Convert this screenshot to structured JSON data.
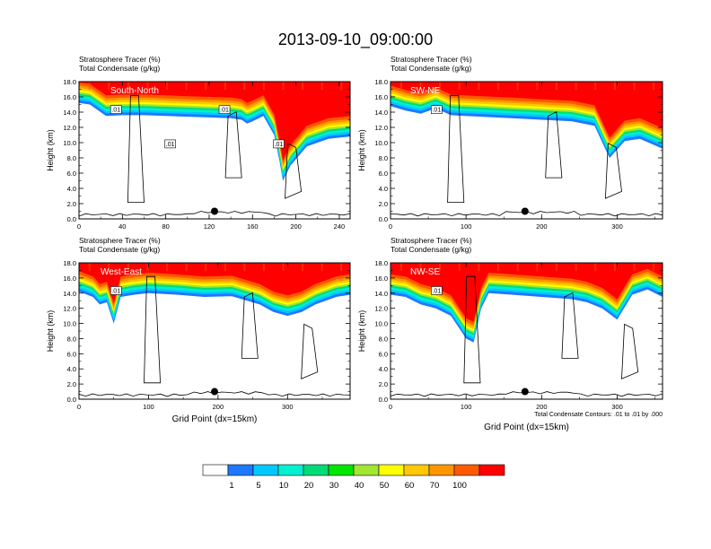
{
  "chart_data": [
    {
      "type": "contour",
      "panel": "South-North",
      "left_strings": [
        "Stratosphere Tracer   (%)",
        "Total Condensate   (g/kg)"
      ],
      "ylabel": "Height (km)",
      "xlabel": "",
      "xlim": [
        0,
        250
      ],
      "ylim": [
        0,
        18
      ],
      "xticks": [
        0,
        40,
        80,
        120,
        160,
        200,
        240
      ],
      "yticks": [
        0.0,
        2.0,
        4.0,
        6.0,
        8.0,
        10.0,
        12.0,
        14.0,
        16.0,
        18.0
      ],
      "tracer_boundary_km": [
        [
          0,
          15.2
        ],
        [
          10,
          15.0
        ],
        [
          25,
          13.5
        ],
        [
          40,
          13.6
        ],
        [
          60,
          13.6
        ],
        [
          80,
          13.5
        ],
        [
          100,
          13.4
        ],
        [
          120,
          13.3
        ],
        [
          140,
          13.2
        ],
        [
          150,
          13.0
        ],
        [
          155,
          12.5
        ],
        [
          160,
          12.8
        ],
        [
          170,
          13.5
        ],
        [
          180,
          11
        ],
        [
          185,
          7.5
        ],
        [
          188,
          5
        ],
        [
          195,
          7
        ],
        [
          210,
          9.5
        ],
        [
          230,
          10.5
        ],
        [
          250,
          10.8
        ]
      ],
      "contour_labels": [
        ".01",
        ".01",
        ".01",
        ".01"
      ],
      "marker_x": 125,
      "marker_y_km": 1.0
    },
    {
      "type": "contour",
      "panel": "SW-NE",
      "left_strings": [
        "Stratosphere Tracer   (%)",
        "Total Condensate   (g/kg)"
      ],
      "ylabel": "Height (km)",
      "xlabel": "",
      "xlim": [
        0,
        360
      ],
      "ylim": [
        0,
        18
      ],
      "xticks": [
        0,
        100,
        200,
        300
      ],
      "yticks": [
        0.0,
        2.0,
        4.0,
        6.0,
        8.0,
        10.0,
        12.0,
        14.0,
        16.0,
        18.0
      ],
      "tracer_boundary_km": [
        [
          0,
          14.8
        ],
        [
          20,
          14.2
        ],
        [
          40,
          13.8
        ],
        [
          60,
          14.5
        ],
        [
          80,
          13.6
        ],
        [
          120,
          13.4
        ],
        [
          160,
          13.2
        ],
        [
          200,
          13.0
        ],
        [
          240,
          12.8
        ],
        [
          270,
          12.2
        ],
        [
          285,
          9
        ],
        [
          290,
          8
        ],
        [
          310,
          10.2
        ],
        [
          330,
          10.5
        ],
        [
          360,
          9.2
        ]
      ],
      "contour_labels": [
        ".01"
      ],
      "marker_x": 178,
      "marker_y_km": 1.0
    },
    {
      "type": "contour",
      "panel": "West-East",
      "left_strings": [
        "Stratosphere Tracer   (%)",
        "Total Condensate   (g/kg)"
      ],
      "ylabel": "Height (km)",
      "xlabel": "Grid Point (dx=15km)",
      "xlim": [
        0,
        390
      ],
      "ylim": [
        0,
        18
      ],
      "xticks": [
        0,
        100,
        200,
        300
      ],
      "yticks": [
        0.0,
        2.0,
        4.0,
        6.0,
        8.0,
        10.0,
        12.0,
        14.0,
        16.0,
        18.0
      ],
      "tracer_boundary_km": [
        [
          0,
          14.2
        ],
        [
          20,
          13.5
        ],
        [
          30,
          12.5
        ],
        [
          40,
          12.8
        ],
        [
          50,
          10
        ],
        [
          60,
          13.5
        ],
        [
          80,
          13.8
        ],
        [
          100,
          14
        ],
        [
          140,
          13.8
        ],
        [
          180,
          13.5
        ],
        [
          220,
          13.6
        ],
        [
          260,
          12.5
        ],
        [
          280,
          11.5
        ],
        [
          300,
          11
        ],
        [
          320,
          11.5
        ],
        [
          340,
          12.5
        ],
        [
          370,
          13.5
        ],
        [
          390,
          13.8
        ]
      ],
      "contour_labels": [
        ".01"
      ],
      "marker_x": 195,
      "marker_y_km": 1.0
    },
    {
      "type": "contour",
      "panel": "NW-SE",
      "left_strings": [
        "Stratosphere Tracer   (%)",
        "Total Condensate   (g/kg)"
      ],
      "ylabel": "Height (km)",
      "xlabel": "Grid Point (dx=15km)",
      "xlim": [
        0,
        360
      ],
      "ylim": [
        0,
        18
      ],
      "xticks": [
        0,
        100,
        200,
        300
      ],
      "yticks": [
        0.0,
        2.0,
        4.0,
        6.0,
        8.0,
        10.0,
        12.0,
        14.0,
        16.0,
        18.0
      ],
      "tracer_boundary_km": [
        [
          0,
          13.8
        ],
        [
          20,
          13.5
        ],
        [
          40,
          12.5
        ],
        [
          60,
          12.0
        ],
        [
          80,
          11
        ],
        [
          100,
          8
        ],
        [
          110,
          7.5
        ],
        [
          120,
          12
        ],
        [
          130,
          14
        ],
        [
          160,
          13.8
        ],
        [
          200,
          13.5
        ],
        [
          240,
          13.2
        ],
        [
          260,
          12.8
        ],
        [
          280,
          12
        ],
        [
          300,
          10.5
        ],
        [
          320,
          13.8
        ],
        [
          340,
          14.5
        ],
        [
          360,
          13.5
        ]
      ],
      "contour_labels": [
        ".01"
      ],
      "marker_x": 178,
      "marker_y_km": 1.0,
      "info_text": "Total Condensate Contours: .01 to .01 by .000"
    }
  ],
  "title": "2013-09-10_09:00:00",
  "panel_labels": [
    "South-North",
    "SW-NE",
    "West-East",
    "NW-SE"
  ],
  "colorbar": {
    "colors": [
      "#ffffff",
      "#1e78ff",
      "#00c8ff",
      "#00f0d0",
      "#00dc78",
      "#00e600",
      "#a0e632",
      "#ffff00",
      "#ffc800",
      "#ff9600",
      "#ff5a00",
      "#ff0000"
    ],
    "labels": [
      "1",
      "5",
      "10",
      "20",
      "30",
      "40",
      "50",
      "60",
      "70",
      "100"
    ]
  }
}
